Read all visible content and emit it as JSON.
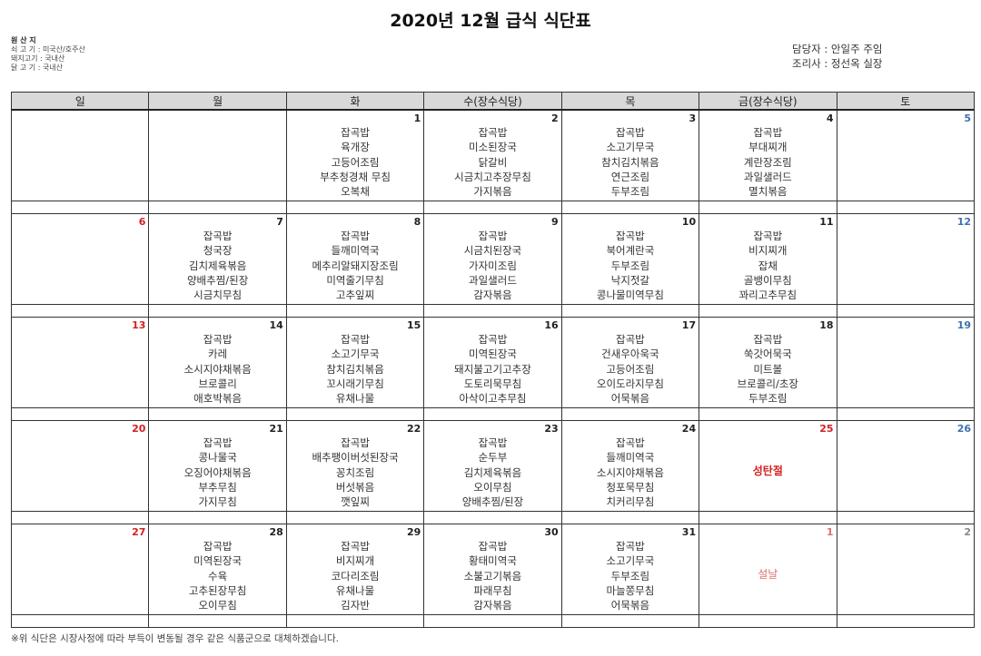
{
  "title": "2020년 12월 급식 식단표",
  "origin": {
    "heading": "원 산 지",
    "lines": [
      "쇠 고 기 : 미국산/호주산",
      "돼지고기 : 국내산",
      "닭 고 기 : 국내산"
    ]
  },
  "staff": [
    "담당자 : 안일주  주임",
    "조리사 : 정선옥  실장"
  ],
  "colors": {
    "sunday": "#d42020",
    "saturday": "#3d72b0",
    "holiday_next": "#e07070",
    "grey": "#888888",
    "header_bg": "#d9d9d9"
  },
  "weekdays": [
    "일",
    "월",
    "화",
    "수(장수식당)",
    "목",
    "금(장수식당)",
    "토"
  ],
  "weeks": [
    [
      {
        "date": ""
      },
      {
        "date": ""
      },
      {
        "date": "1",
        "menu": [
          "잡곡밥",
          "육개장",
          "고등어조림",
          "부추청경채 무침",
          "오복채"
        ]
      },
      {
        "date": "2",
        "menu": [
          "잡곡밥",
          "미소된장국",
          "닭갈비",
          "시금치고추장무침",
          "가지볶음"
        ]
      },
      {
        "date": "3",
        "menu": [
          "잡곡밥",
          "소고기무국",
          "참치김치볶음",
          "연근조림",
          "두부조림"
        ]
      },
      {
        "date": "4",
        "menu": [
          "잡곡밥",
          "부대찌개",
          "계란장조림",
          "과일샐러드",
          "멸치볶음"
        ]
      },
      {
        "date": "5",
        "color": "saturday"
      }
    ],
    [
      {
        "date": "6",
        "color": "sunday"
      },
      {
        "date": "7",
        "menu": [
          "잡곡밥",
          "청국장",
          "김치제육볶음",
          "양배추찜/된장",
          "시금치무침"
        ]
      },
      {
        "date": "8",
        "menu": [
          "잡곡밥",
          "들깨미역국",
          "메추리알돼지장조림",
          "미역줄기무침",
          "고추잎찌"
        ]
      },
      {
        "date": "9",
        "menu": [
          "잡곡밥",
          "시금치된장국",
          "가자미조림",
          "과일샐러드",
          "감자볶음"
        ]
      },
      {
        "date": "10",
        "menu": [
          "잡곡밥",
          "북어계란국",
          "두부조림",
          "낙지젓갈",
          "콩나물미역무침"
        ]
      },
      {
        "date": "11",
        "menu": [
          "잡곡밥",
          "비지찌개",
          "잡채",
          "골뱅이무침",
          "꽈리고추무침"
        ]
      },
      {
        "date": "12",
        "color": "saturday"
      }
    ],
    [
      {
        "date": "13",
        "color": "sunday"
      },
      {
        "date": "14",
        "menu": [
          "잡곡밥",
          "카레",
          "소시지야채볶음",
          "브로콜리",
          "애호박볶음"
        ]
      },
      {
        "date": "15",
        "menu": [
          "잡곡밥",
          "소고기무국",
          "참치김치볶음",
          "꼬시래기무침",
          "유채나물"
        ]
      },
      {
        "date": "16",
        "menu": [
          "잡곡밥",
          "미역된장국",
          "돼지불고기고추장",
          "도토리묵무침",
          "아삭이고추무침"
        ]
      },
      {
        "date": "17",
        "menu": [
          "잡곡밥",
          "건새우아욱국",
          "고등어조림",
          "오이도라지무침",
          "어묵볶음"
        ]
      },
      {
        "date": "18",
        "menu": [
          "잡곡밥",
          "쑥갓어묵국",
          "미트볼",
          "브로콜리/초장",
          "두부조림"
        ]
      },
      {
        "date": "19",
        "color": "saturday"
      }
    ],
    [
      {
        "date": "20",
        "color": "sunday"
      },
      {
        "date": "21",
        "menu": [
          "잡곡밥",
          "콩나물국",
          "오징어야채볶음",
          "부추무침",
          "가지무침"
        ]
      },
      {
        "date": "22",
        "menu": [
          "잡곡밥",
          "배추팽이버섯된장국",
          "꽁치조림",
          "버섯볶음",
          "깻잎찌"
        ]
      },
      {
        "date": "23",
        "menu": [
          "잡곡밥",
          "순두부",
          "김치제육볶음",
          "오이무침",
          "양배추찜/된장"
        ]
      },
      {
        "date": "24",
        "menu": [
          "잡곡밥",
          "들깨미역국",
          "소시지야채볶음",
          "청포묵무침",
          "치커리무침"
        ]
      },
      {
        "date": "25",
        "color": "sunday",
        "holiday": "성탄절"
      },
      {
        "date": "26",
        "color": "saturday"
      }
    ],
    [
      {
        "date": "27",
        "color": "sunday"
      },
      {
        "date": "28",
        "menu": [
          "잡곡밥",
          "미역된장국",
          "수육",
          "고추된장무침",
          "오이무침"
        ]
      },
      {
        "date": "29",
        "menu": [
          "잡곡밥",
          "비지찌개",
          "코다리조림",
          "유채나물",
          "김자반"
        ]
      },
      {
        "date": "30",
        "menu": [
          "잡곡밥",
          "황태미역국",
          "소불고기볶음",
          "파래무침",
          "감자볶음"
        ]
      },
      {
        "date": "31",
        "menu": [
          "잡곡밥",
          "소고기무국",
          "두부조림",
          "마늘쫑무침",
          "어묵볶음"
        ]
      },
      {
        "date": "1",
        "color": "holiday_next",
        "holiday": "설날"
      },
      {
        "date": "2",
        "color": "grey"
      }
    ]
  ],
  "note": "※위 식단은 시장사정에 따라 부득이 변동될 경우 같은 식품군으로 대체하겠습니다."
}
